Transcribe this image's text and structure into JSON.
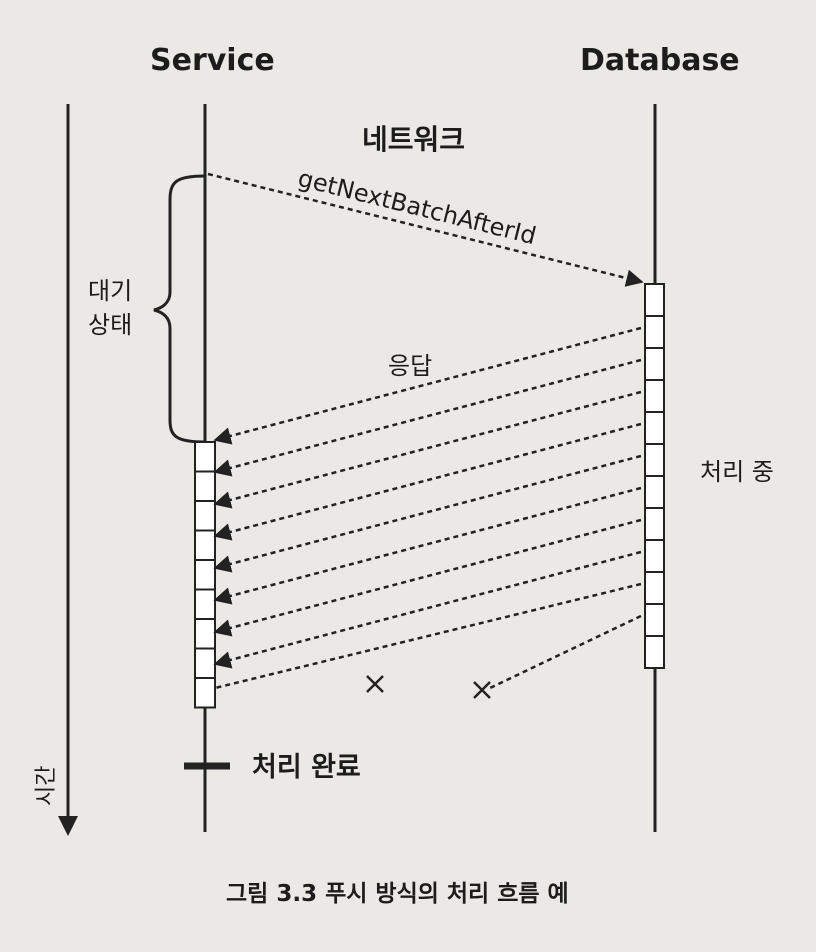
{
  "participants": {
    "service": "Service",
    "database": "Database"
  },
  "network_label": "네트워크",
  "request_message": "getNextBatchAfterId",
  "wait_state_label": [
    "대기",
    "상태"
  ],
  "response_label": "응답",
  "processing_label": "처리 중",
  "completed_label": "처리 완료",
  "time_axis_label": "시간",
  "caption": "그림 3.3 푸시 방식의 처리 흐름 예",
  "colors": {
    "line": "#222222",
    "box_fill": "#ffffff",
    "background": "#ebe9e5"
  },
  "response_count": 10,
  "received_count": 8,
  "lost_count": 2,
  "database_block_count": 12
}
